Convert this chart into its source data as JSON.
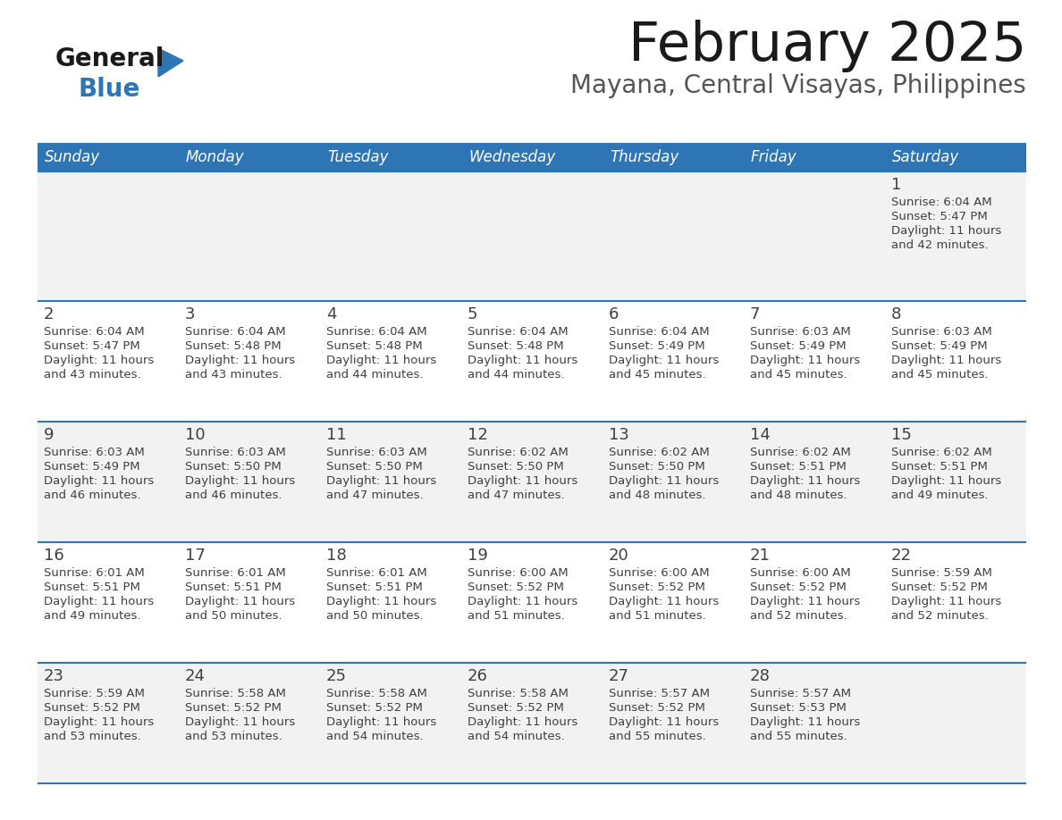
{
  "title": "February 2025",
  "subtitle": "Mayana, Central Visayas, Philippines",
  "header_bg": "#2E75B6",
  "header_text": "#FFFFFF",
  "row_bg_light": "#F2F2F2",
  "row_bg_white": "#FFFFFF",
  "border_color": "#2E75B6",
  "text_color": "#404040",
  "days_of_week": [
    "Sunday",
    "Monday",
    "Tuesday",
    "Wednesday",
    "Thursday",
    "Friday",
    "Saturday"
  ],
  "calendar": [
    [
      {
        "day": "",
        "sunrise": "",
        "sunset": "",
        "daylight": ""
      },
      {
        "day": "",
        "sunrise": "",
        "sunset": "",
        "daylight": ""
      },
      {
        "day": "",
        "sunrise": "",
        "sunset": "",
        "daylight": ""
      },
      {
        "day": "",
        "sunrise": "",
        "sunset": "",
        "daylight": ""
      },
      {
        "day": "",
        "sunrise": "",
        "sunset": "",
        "daylight": ""
      },
      {
        "day": "",
        "sunrise": "",
        "sunset": "",
        "daylight": ""
      },
      {
        "day": "1",
        "sunrise": "6:04 AM",
        "sunset": "5:47 PM",
        "daylight": "11 hours\nand 42 minutes."
      }
    ],
    [
      {
        "day": "2",
        "sunrise": "6:04 AM",
        "sunset": "5:47 PM",
        "daylight": "11 hours\nand 43 minutes."
      },
      {
        "day": "3",
        "sunrise": "6:04 AM",
        "sunset": "5:48 PM",
        "daylight": "11 hours\nand 43 minutes."
      },
      {
        "day": "4",
        "sunrise": "6:04 AM",
        "sunset": "5:48 PM",
        "daylight": "11 hours\nand 44 minutes."
      },
      {
        "day": "5",
        "sunrise": "6:04 AM",
        "sunset": "5:48 PM",
        "daylight": "11 hours\nand 44 minutes."
      },
      {
        "day": "6",
        "sunrise": "6:04 AM",
        "sunset": "5:49 PM",
        "daylight": "11 hours\nand 45 minutes."
      },
      {
        "day": "7",
        "sunrise": "6:03 AM",
        "sunset": "5:49 PM",
        "daylight": "11 hours\nand 45 minutes."
      },
      {
        "day": "8",
        "sunrise": "6:03 AM",
        "sunset": "5:49 PM",
        "daylight": "11 hours\nand 45 minutes."
      }
    ],
    [
      {
        "day": "9",
        "sunrise": "6:03 AM",
        "sunset": "5:49 PM",
        "daylight": "11 hours\nand 46 minutes."
      },
      {
        "day": "10",
        "sunrise": "6:03 AM",
        "sunset": "5:50 PM",
        "daylight": "11 hours\nand 46 minutes."
      },
      {
        "day": "11",
        "sunrise": "6:03 AM",
        "sunset": "5:50 PM",
        "daylight": "11 hours\nand 47 minutes."
      },
      {
        "day": "12",
        "sunrise": "6:02 AM",
        "sunset": "5:50 PM",
        "daylight": "11 hours\nand 47 minutes."
      },
      {
        "day": "13",
        "sunrise": "6:02 AM",
        "sunset": "5:50 PM",
        "daylight": "11 hours\nand 48 minutes."
      },
      {
        "day": "14",
        "sunrise": "6:02 AM",
        "sunset": "5:51 PM",
        "daylight": "11 hours\nand 48 minutes."
      },
      {
        "day": "15",
        "sunrise": "6:02 AM",
        "sunset": "5:51 PM",
        "daylight": "11 hours\nand 49 minutes."
      }
    ],
    [
      {
        "day": "16",
        "sunrise": "6:01 AM",
        "sunset": "5:51 PM",
        "daylight": "11 hours\nand 49 minutes."
      },
      {
        "day": "17",
        "sunrise": "6:01 AM",
        "sunset": "5:51 PM",
        "daylight": "11 hours\nand 50 minutes."
      },
      {
        "day": "18",
        "sunrise": "6:01 AM",
        "sunset": "5:51 PM",
        "daylight": "11 hours\nand 50 minutes."
      },
      {
        "day": "19",
        "sunrise": "6:00 AM",
        "sunset": "5:52 PM",
        "daylight": "11 hours\nand 51 minutes."
      },
      {
        "day": "20",
        "sunrise": "6:00 AM",
        "sunset": "5:52 PM",
        "daylight": "11 hours\nand 51 minutes."
      },
      {
        "day": "21",
        "sunrise": "6:00 AM",
        "sunset": "5:52 PM",
        "daylight": "11 hours\nand 52 minutes."
      },
      {
        "day": "22",
        "sunrise": "5:59 AM",
        "sunset": "5:52 PM",
        "daylight": "11 hours\nand 52 minutes."
      }
    ],
    [
      {
        "day": "23",
        "sunrise": "5:59 AM",
        "sunset": "5:52 PM",
        "daylight": "11 hours\nand 53 minutes."
      },
      {
        "day": "24",
        "sunrise": "5:58 AM",
        "sunset": "5:52 PM",
        "daylight": "11 hours\nand 53 minutes."
      },
      {
        "day": "25",
        "sunrise": "5:58 AM",
        "sunset": "5:52 PM",
        "daylight": "11 hours\nand 54 minutes."
      },
      {
        "day": "26",
        "sunrise": "5:58 AM",
        "sunset": "5:52 PM",
        "daylight": "11 hours\nand 54 minutes."
      },
      {
        "day": "27",
        "sunrise": "5:57 AM",
        "sunset": "5:52 PM",
        "daylight": "11 hours\nand 55 minutes."
      },
      {
        "day": "28",
        "sunrise": "5:57 AM",
        "sunset": "5:53 PM",
        "daylight": "11 hours\nand 55 minutes."
      },
      {
        "day": "",
        "sunrise": "",
        "sunset": "",
        "daylight": ""
      }
    ]
  ]
}
